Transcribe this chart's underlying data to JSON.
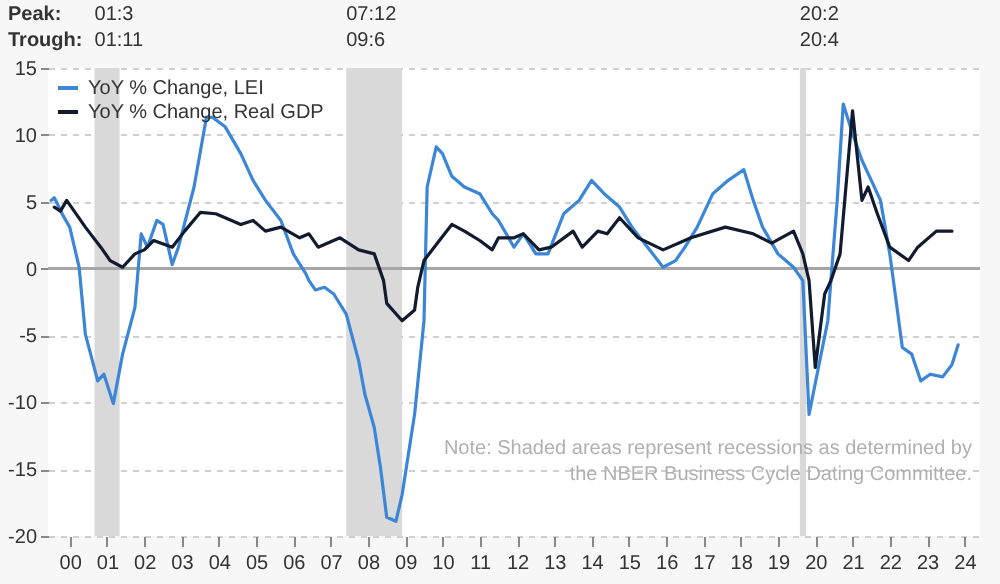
{
  "chart_data": {
    "type": "line",
    "annotations": [
      "Peak:",
      "Trough:",
      "Note: Shaded areas represent recessions as determined by\nthe NBER Business Cycle Dating Committee."
    ],
    "series": [
      {
        "name": "YoY % Change, LEI",
        "color": "#3b86d8",
        "x": [
          "2000-01",
          "2000-02",
          "2000-05",
          "2000-07",
          "2000-10",
          "2000-12",
          "2001-04",
          "2001-06",
          "2001-09",
          "2001-12",
          "2002-04",
          "2002-06",
          "2002-08",
          "2002-11",
          "2003-01",
          "2003-04",
          "2003-06",
          "2003-11",
          "2004-03",
          "2004-05",
          "2004-09",
          "2005-02",
          "2005-06",
          "2005-10",
          "2006-03",
          "2006-07",
          "2006-11",
          "2006-12",
          "2007-02",
          "2007-05",
          "2007-08",
          "2007-12",
          "2008-04",
          "2008-06",
          "2008-09",
          "2008-11",
          "2009-01",
          "2009-04",
          "2009-06",
          "2009-10",
          "2010-01",
          "2010-02",
          "2010-05",
          "2010-07",
          "2010-10",
          "2011-02",
          "2011-07",
          "2011-11",
          "2012-01",
          "2012-06",
          "2012-09",
          "2013-01",
          "2013-05",
          "2013-10",
          "2014-03",
          "2014-07",
          "2014-11",
          "2015-04",
          "2015-08",
          "2016-01",
          "2016-06",
          "2016-10",
          "2017-01",
          "2017-05",
          "2017-10",
          "2018-03",
          "2018-08",
          "2018-11",
          "2019-02",
          "2019-07",
          "2019-12",
          "2020-03",
          "2020-05",
          "2020-08",
          "2020-11",
          "2020-12",
          "2021-02",
          "2021-04",
          "2021-07",
          "2021-10",
          "2022-01",
          "2022-04",
          "2022-07",
          "2022-09",
          "2022-11",
          "2023-02",
          "2023-05",
          "2023-08",
          "2023-12",
          "2024-03",
          "2024-05"
        ],
        "values": [
          5.1,
          5.3,
          3.9,
          3.1,
          0.1,
          -4.9,
          -8.4,
          -7.9,
          -10.1,
          -6.4,
          -2.9,
          2.6,
          1.6,
          3.6,
          3.3,
          0.3,
          1.6,
          6.1,
          11.3,
          11.3,
          10.6,
          8.6,
          6.6,
          5.1,
          3.6,
          1.1,
          -0.4,
          -0.9,
          -1.6,
          -1.4,
          -1.9,
          -3.4,
          -6.9,
          -9.4,
          -11.9,
          -14.9,
          -18.6,
          -18.9,
          -16.9,
          -10.9,
          -3.9,
          6.1,
          9.1,
          8.6,
          6.9,
          6.1,
          5.6,
          4.1,
          3.6,
          1.6,
          2.6,
          1.1,
          1.1,
          4.1,
          5.1,
          6.6,
          5.6,
          4.6,
          3.1,
          1.6,
          0.1,
          0.6,
          1.6,
          3.1,
          5.6,
          6.6,
          7.4,
          5.1,
          3.1,
          1.1,
          0.1,
          -0.9,
          -10.9,
          -7.4,
          -3.9,
          -0.9,
          5.1,
          12.3,
          10.1,
          8.1,
          6.6,
          5.1,
          1.1,
          -2.4,
          -5.9,
          -6.4,
          -8.4,
          -7.9,
          -8.1,
          -7.2,
          -5.7
        ]
      },
      {
        "name": "YoY % Change, Real GDP",
        "color": "#111a2e",
        "x": [
          "2000-02",
          "2000-04",
          "2000-06",
          "2000-12",
          "2001-05",
          "2001-08",
          "2001-12",
          "2002-04",
          "2002-07",
          "2002-10",
          "2003-04",
          "2003-08",
          "2004-01",
          "2004-06",
          "2005-02",
          "2005-06",
          "2005-10",
          "2006-03",
          "2006-09",
          "2006-12",
          "2007-03",
          "2007-10",
          "2008-04",
          "2008-09",
          "2008-12",
          "2009-01",
          "2009-06",
          "2009-10",
          "2009-11",
          "2010-01",
          "2010-06",
          "2010-10",
          "2011-02",
          "2011-07",
          "2011-11",
          "2012-01",
          "2012-06",
          "2012-09",
          "2013-02",
          "2013-06",
          "2014-01",
          "2014-04",
          "2014-09",
          "2014-12",
          "2015-04",
          "2015-10",
          "2016-06",
          "2017-03",
          "2018-02",
          "2018-11",
          "2019-05",
          "2019-12",
          "2020-03",
          "2020-05",
          "2020-07",
          "2020-10",
          "2020-12",
          "2021-03",
          "2021-07",
          "2021-10",
          "2021-12",
          "2022-03",
          "2022-07",
          "2023-01",
          "2023-04",
          "2023-10",
          "2024-03"
        ],
        "values": [
          4.6,
          4.3,
          5.1,
          3.1,
          1.6,
          0.6,
          0.1,
          1.1,
          1.4,
          2.1,
          1.6,
          2.8,
          4.2,
          4.1,
          3.3,
          3.6,
          2.8,
          3.1,
          2.3,
          2.6,
          1.6,
          2.3,
          1.4,
          1.1,
          -0.9,
          -2.6,
          -3.9,
          -3.1,
          -1.4,
          0.6,
          2.1,
          3.3,
          2.8,
          2.1,
          1.4,
          2.3,
          2.3,
          2.6,
          1.4,
          1.6,
          2.8,
          1.6,
          2.8,
          2.6,
          3.8,
          2.3,
          1.4,
          2.3,
          3.1,
          2.6,
          1.9,
          2.8,
          1.1,
          -0.9,
          -7.4,
          -1.9,
          -0.9,
          1.1,
          11.8,
          5.1,
          6.1,
          4.1,
          1.6,
          0.6,
          1.6,
          2.8,
          2.8
        ]
      }
    ],
    "xlim": [
      "1999-12",
      "2024-12"
    ],
    "xticks": [
      {
        "value": "2000-07",
        "label": "00"
      },
      {
        "value": "2001-07",
        "label": "01"
      },
      {
        "value": "2002-07",
        "label": "02"
      },
      {
        "value": "2003-07",
        "label": "03"
      },
      {
        "value": "2004-07",
        "label": "04"
      },
      {
        "value": "2005-07",
        "label": "05"
      },
      {
        "value": "2006-07",
        "label": "06"
      },
      {
        "value": "2007-07",
        "label": "07"
      },
      {
        "value": "2008-07",
        "label": "08"
      },
      {
        "value": "2009-07",
        "label": "09"
      },
      {
        "value": "2010-07",
        "label": "10"
      },
      {
        "value": "2011-07",
        "label": "11"
      },
      {
        "value": "2012-07",
        "label": "12"
      },
      {
        "value": "2013-07",
        "label": "13"
      },
      {
        "value": "2014-07",
        "label": "14"
      },
      {
        "value": "2015-07",
        "label": "15"
      },
      {
        "value": "2016-07",
        "label": "16"
      },
      {
        "value": "2017-07",
        "label": "17"
      },
      {
        "value": "2018-07",
        "label": "18"
      },
      {
        "value": "2019-07",
        "label": "19"
      },
      {
        "value": "2020-07",
        "label": "20"
      },
      {
        "value": "2021-07",
        "label": "21"
      },
      {
        "value": "2022-07",
        "label": "22"
      },
      {
        "value": "2023-07",
        "label": "23"
      },
      {
        "value": "2024-07",
        "label": "24"
      }
    ],
    "ylim": [
      -20,
      15
    ],
    "yticks": [
      -20,
      -15,
      -10,
      -5,
      0,
      5,
      10,
      15
    ],
    "grid": "y",
    "legend": "top left",
    "ref_lines": [
      {
        "axis": "y",
        "value": 0,
        "color": "#a6a6a6"
      }
    ],
    "bands": [
      {
        "axis": "x",
        "from": "2001-03",
        "to": "2001-11",
        "label": "01:3\n01:11",
        "color": "#d9d9d9"
      },
      {
        "axis": "x",
        "from": "2007-12",
        "to": "2009-06",
        "label": "07:12\n09:6",
        "color": "#d9d9d9"
      },
      {
        "axis": "x",
        "from": "2020-02",
        "to": "2020-04",
        "label": "20:2\n20:4",
        "color": "#d9d9d9"
      }
    ]
  }
}
